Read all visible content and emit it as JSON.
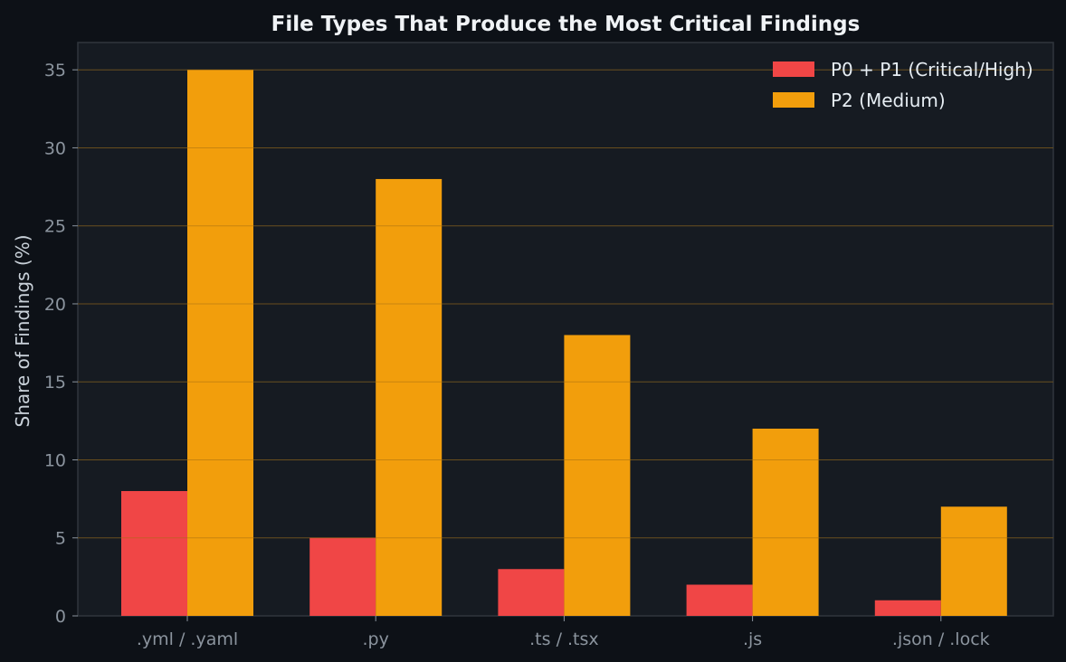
{
  "chart_data": {
    "type": "bar",
    "title": "File Types That Produce the Most Critical Findings",
    "xlabel": "",
    "ylabel": "Share of Findings (%)",
    "categories": [
      ".yml / .yaml",
      ".py",
      ".ts / .tsx",
      ".js",
      ".json / .lock"
    ],
    "series": [
      {
        "name": "P0 + P1 (Critical/High)",
        "color": "#f04646",
        "values": [
          8,
          5,
          3,
          2,
          1
        ]
      },
      {
        "name": "P2 (Medium)",
        "color": "#f29e0c",
        "values": [
          35,
          28,
          18,
          12,
          7
        ]
      }
    ],
    "ylim": [
      0,
      36.75
    ],
    "yticks": [
      0,
      5,
      10,
      15,
      20,
      25,
      30,
      35
    ],
    "grid": true,
    "legend_position": "top-right"
  }
}
